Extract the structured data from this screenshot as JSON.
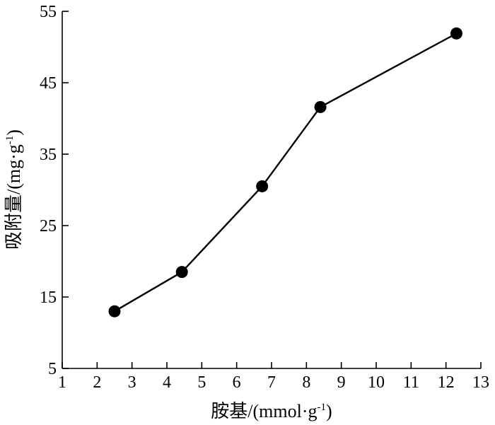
{
  "chart_data": {
    "type": "line",
    "xlabel": {
      "main": "胺基/(mmol·g",
      "sup": "-1",
      "close": ")"
    },
    "ylabel": {
      "main": "吸附量/(mg·g",
      "sup": "-1",
      "close": ")"
    },
    "xlim": [
      1,
      13
    ],
    "ylim": [
      5,
      55
    ],
    "xticks": [
      1,
      2,
      3,
      4,
      5,
      6,
      7,
      8,
      9,
      10,
      11,
      12,
      13
    ],
    "yticks": [
      5,
      15,
      25,
      35,
      45,
      55
    ],
    "grid": false,
    "series": [
      {
        "x": [
          2.5,
          4.43,
          6.73,
          8.4,
          12.3
        ],
        "y": [
          13,
          18.5,
          30.5,
          41.6,
          51.9
        ],
        "color": "#000000",
        "marker": "circle"
      }
    ]
  }
}
